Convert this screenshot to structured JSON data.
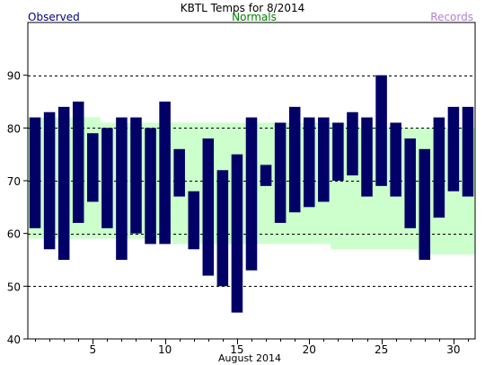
{
  "header": {
    "title": "KBTL Temps for 8/2014",
    "observed_label": "Observed",
    "normals_label": "Normals",
    "records_label": "Records"
  },
  "colors": {
    "observed": "#000066",
    "normals": "#ccffcc",
    "observed_text": "#000080",
    "normals_text": "#008000",
    "records_text": "#b080d0",
    "grid": "#000000"
  },
  "chart_data": {
    "type": "bar",
    "title": "KBTL Temps for 8/2014",
    "xlabel": "August 2014",
    "ylabel": "",
    "ylim": [
      40,
      100
    ],
    "xlim": [
      0.5,
      31.5
    ],
    "y_ticks": [
      40,
      50,
      60,
      70,
      80,
      90
    ],
    "x_ticks": [
      5,
      10,
      15,
      20,
      25,
      30
    ],
    "grid": "dashed horizontal at 50, 60, 70, 80, 90",
    "legend": "top",
    "days": [
      1,
      2,
      3,
      4,
      5,
      6,
      7,
      8,
      9,
      10,
      11,
      12,
      13,
      14,
      15,
      16,
      17,
      18,
      19,
      20,
      21,
      22,
      23,
      24,
      25,
      26,
      27,
      28,
      29,
      30,
      31
    ],
    "series": [
      {
        "name": "Observed",
        "high": [
          82,
          83,
          84,
          85,
          79,
          80,
          82,
          82,
          80,
          85,
          76,
          68,
          78,
          72,
          75,
          82,
          73,
          81,
          84,
          82,
          82,
          81,
          83,
          82,
          90,
          81,
          78,
          76,
          82,
          84,
          84
        ],
        "low": [
          61,
          57,
          55,
          62,
          66,
          61,
          55,
          60,
          58,
          58,
          67,
          57,
          52,
          50,
          45,
          53,
          69,
          62,
          64,
          65,
          66,
          70,
          71,
          67,
          69,
          67,
          61,
          55,
          63,
          68,
          67
        ]
      },
      {
        "name": "Normals",
        "high": [
          82,
          82,
          82,
          82,
          82,
          81,
          81,
          81,
          81,
          81,
          81,
          81,
          81,
          81,
          81,
          81,
          81,
          81,
          81,
          81,
          81,
          81,
          80,
          80,
          80,
          80,
          80,
          80,
          80,
          80,
          80
        ],
        "low": [
          59,
          59,
          59,
          59,
          59,
          59,
          59,
          59,
          59,
          59,
          58,
          58,
          58,
          58,
          58,
          58,
          58,
          58,
          58,
          58,
          58,
          57,
          57,
          57,
          57,
          57,
          57,
          56,
          56,
          56,
          56
        ]
      }
    ]
  }
}
